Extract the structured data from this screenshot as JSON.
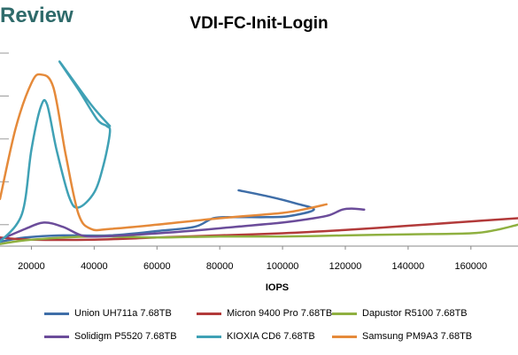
{
  "header": {
    "brand": "Review"
  },
  "chart_data": {
    "type": "line",
    "title": "VDI-FC-Init-Login",
    "xlabel": "IOPS",
    "ylabel": "",
    "xlim": [
      10000,
      175000
    ],
    "x_ticks": [
      20000,
      40000,
      60000,
      80000,
      100000,
      120000,
      140000,
      160000
    ],
    "x_tick_labels": [
      "20000",
      "40000",
      "60000",
      "80000",
      "100000",
      "120000",
      "140000",
      "160000"
    ],
    "ylim": [
      0,
      9
    ],
    "y_gridlines": [
      1,
      3,
      5,
      7,
      9
    ],
    "grid": true,
    "legend_position": "bottom",
    "series": [
      {
        "name": "Union UH711a 7.68TB",
        "color": "#3f6ea8",
        "points": [
          [
            10000,
            0.2
          ],
          [
            18000,
            0.4
          ],
          [
            30000,
            0.5
          ],
          [
            45000,
            0.5
          ],
          [
            60000,
            0.7
          ],
          [
            72000,
            0.9
          ],
          [
            78000,
            1.3
          ],
          [
            85000,
            1.35
          ],
          [
            95000,
            1.35
          ],
          [
            102000,
            1.4
          ],
          [
            110000,
            1.7
          ],
          [
            104000,
            2.0
          ],
          [
            96000,
            2.3
          ],
          [
            86000,
            2.6
          ]
        ]
      },
      {
        "name": "Micron 9400 Pro 7.68TB",
        "color": "#b23a3a",
        "points": [
          [
            10000,
            0.4
          ],
          [
            20000,
            0.3
          ],
          [
            40000,
            0.3
          ],
          [
            60000,
            0.4
          ],
          [
            80000,
            0.5
          ],
          [
            100000,
            0.6
          ],
          [
            120000,
            0.75
          ],
          [
            140000,
            0.95
          ],
          [
            160000,
            1.15
          ],
          [
            175000,
            1.3
          ]
        ]
      },
      {
        "name": "Dapustor R5100 7.68TB",
        "color": "#8fb040",
        "points": [
          [
            10000,
            0.1
          ],
          [
            20000,
            0.3
          ],
          [
            40000,
            0.45
          ],
          [
            60000,
            0.4
          ],
          [
            80000,
            0.45
          ],
          [
            100000,
            0.45
          ],
          [
            120000,
            0.5
          ],
          [
            140000,
            0.55
          ],
          [
            160000,
            0.6
          ],
          [
            168000,
            0.75
          ],
          [
            175000,
            1.0
          ]
        ]
      },
      {
        "name": "Solidigm P5520 7.68TB",
        "color": "#6b4c9a",
        "points": [
          [
            10000,
            0.3
          ],
          [
            18000,
            0.8
          ],
          [
            24000,
            1.1
          ],
          [
            30000,
            0.9
          ],
          [
            36000,
            0.5
          ],
          [
            42000,
            0.45
          ],
          [
            55000,
            0.55
          ],
          [
            70000,
            0.7
          ],
          [
            85000,
            0.9
          ],
          [
            100000,
            1.1
          ],
          [
            110000,
            1.3
          ],
          [
            115000,
            1.45
          ],
          [
            119000,
            1.7
          ],
          [
            122000,
            1.75
          ],
          [
            126000,
            1.7
          ]
        ]
      },
      {
        "name": "KIOXIA CD6 7.68TB",
        "color": "#3fa1b5",
        "points": [
          [
            10000,
            0.2
          ],
          [
            17000,
            1.5
          ],
          [
            20000,
            4.5
          ],
          [
            23000,
            6.5
          ],
          [
            25000,
            6.6
          ],
          [
            28000,
            4.5
          ],
          [
            32000,
            2.3
          ],
          [
            35000,
            1.8
          ],
          [
            40000,
            2.5
          ],
          [
            43000,
            3.8
          ],
          [
            45000,
            5.3
          ],
          [
            44000,
            5.6
          ],
          [
            41000,
            5.9
          ],
          [
            35000,
            7.3
          ],
          [
            29000,
            8.6
          ],
          [
            39000,
            6.6
          ],
          [
            45000,
            5.6
          ]
        ]
      },
      {
        "name": "Samsung PM9A3 7.68TB",
        "color": "#e58a3a",
        "points": [
          [
            10000,
            2.2
          ],
          [
            15000,
            5.5
          ],
          [
            20000,
            7.6
          ],
          [
            23000,
            8.0
          ],
          [
            27000,
            7.4
          ],
          [
            31000,
            4.2
          ],
          [
            35000,
            1.5
          ],
          [
            39000,
            0.8
          ],
          [
            45000,
            0.8
          ],
          [
            60000,
            1.0
          ],
          [
            80000,
            1.3
          ],
          [
            100000,
            1.55
          ],
          [
            108000,
            1.75
          ],
          [
            114000,
            1.95
          ]
        ]
      }
    ]
  },
  "legend": [
    {
      "label": "Union UH711a 7.68TB",
      "color": "#3f6ea8"
    },
    {
      "label": "Micron 9400 Pro 7.68TB",
      "color": "#b23a3a"
    },
    {
      "label": "Dapustor R5100 7.68TB",
      "color": "#8fb040"
    },
    {
      "label": "Solidigm P5520 7.68TB",
      "color": "#6b4c9a"
    },
    {
      "label": "KIOXIA CD6 7.68TB",
      "color": "#3fa1b5"
    },
    {
      "label": "Samsung PM9A3 7.68TB",
      "color": "#e58a3a"
    }
  ]
}
